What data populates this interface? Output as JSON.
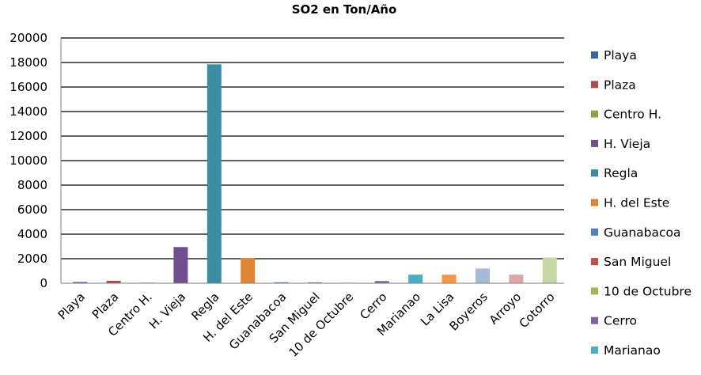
{
  "chart_data": {
    "type": "bar",
    "title": "SO2 en Ton/Año",
    "xlabel": "",
    "ylabel": "",
    "ylim": [
      0,
      20000
    ],
    "ytick_step": 2000,
    "grid": true,
    "legend_position": "right",
    "categories": [
      "Playa",
      "Plaza",
      "Centro H.",
      "H. Vieja",
      "Regla",
      "H. del Este",
      "Guanabacoa",
      "San Miguel",
      "10 de Octubre",
      "Cerro",
      "Marianao",
      "La Lisa",
      "Boyeros",
      "Arroyo",
      "Cotorro"
    ],
    "series": [
      {
        "name": "Playa",
        "category_index": 0,
        "value": 100,
        "color": "#3f62a3"
      },
      {
        "name": "Plaza",
        "category_index": 1,
        "value": 200,
        "color": "#b24a47"
      },
      {
        "name": "Centro H.",
        "category_index": 2,
        "value": 50,
        "color": "#8aa84a"
      },
      {
        "name": "H. Vieja",
        "category_index": 3,
        "value": 2950,
        "color": "#6e4f90"
      },
      {
        "name": "Regla",
        "category_index": 4,
        "value": 17850,
        "color": "#3b8ea2"
      },
      {
        "name": "H. del Este",
        "category_index": 5,
        "value": 2050,
        "color": "#df8533"
      },
      {
        "name": "Guanabacoa",
        "category_index": 6,
        "value": 80,
        "color": "#4e7fc0"
      },
      {
        "name": "San Miguel",
        "category_index": 7,
        "value": 70,
        "color": "#c0504d"
      },
      {
        "name": "10 de Octubre",
        "category_index": 8,
        "value": 40,
        "color": "#9bbb59"
      },
      {
        "name": "Cerro",
        "category_index": 9,
        "value": 180,
        "color": "#8064a2"
      },
      {
        "name": "Marianao",
        "category_index": 10,
        "value": 700,
        "color": "#4bacc6"
      },
      {
        "name": "La Lisa",
        "category_index": 11,
        "value": 700,
        "color": "#f79646"
      },
      {
        "name": "Boyeros",
        "category_index": 12,
        "value": 1200,
        "color": "#a9b9d8"
      },
      {
        "name": "Arroyo",
        "category_index": 13,
        "value": 700,
        "color": "#dba8a6"
      },
      {
        "name": "Cotorro",
        "category_index": 14,
        "value": 2100,
        "color": "#c5d7a3"
      }
    ],
    "legend_visible": [
      "Playa",
      "Plaza",
      "Centro H.",
      "H. Vieja",
      "Regla",
      "H. del Este",
      "Guanabacoa",
      "San Miguel",
      "10 de Octubre",
      "Cerro",
      "Marianao"
    ]
  }
}
